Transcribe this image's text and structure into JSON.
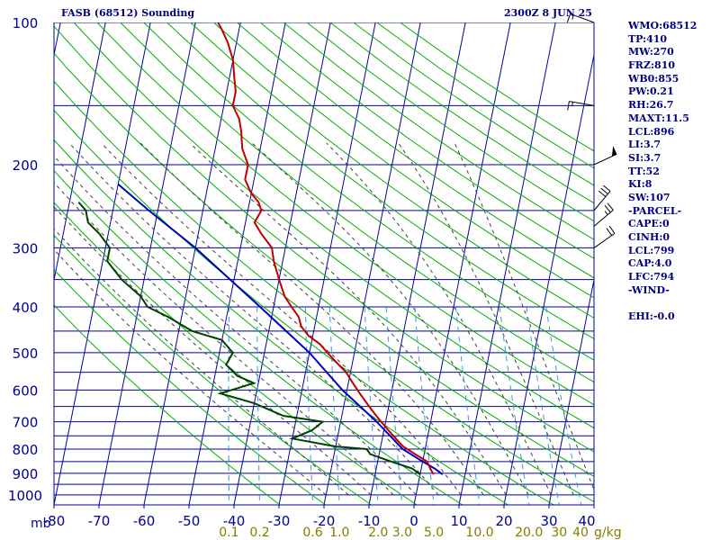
{
  "header": {
    "title": "FASB (68512) Sounding",
    "datetime": "2300Z  8 JUN 25"
  },
  "indices": [
    "WMO:68512",
    "TP:410",
    "MW:270",
    "FRZ:810",
    "WB0:855",
    "PW:0.21",
    "RH:26.7",
    "MAXT:11.5",
    "LCL:896",
    "LI:3.7",
    "SI:3.7",
    "TT:52",
    "KI:8",
    "SW:107",
    "-PARCEL-",
    "CAPE:0",
    "CINH:0",
    "LCL:799",
    "CAP:4.0",
    "LFC:794",
    "-WIND-",
    "",
    "EHI:-0.0"
  ],
  "colors": {
    "axis": "#000099",
    "dry_adiabat": "#00b000",
    "moist_adiabat": "#404040",
    "mixing_ratio": "#3a9ad8",
    "temperature": "#c00000",
    "dewpoint": "#004000",
    "parcel": "#0000c0",
    "temp_ticks": "#000099",
    "mixing_ticks": "#8a7a00"
  },
  "chart_data": {
    "type": "skew-t",
    "pressure_ticks": [
      "100",
      "200",
      "300",
      "400",
      "500",
      "600",
      "700",
      "800",
      "900",
      "1000"
    ],
    "pressure_unit": "mb",
    "pressure_range": [
      100,
      1050
    ],
    "isobars_mb": [
      100,
      150,
      200,
      250,
      300,
      350,
      400,
      450,
      500,
      550,
      600,
      650,
      700,
      750,
      800,
      850,
      900,
      950,
      1000
    ],
    "temperature_ticks": [
      "-80",
      "-70",
      "-60",
      "-50",
      "-40",
      "-30",
      "-20",
      "-10",
      "0",
      "10",
      "20",
      "30",
      "40"
    ],
    "temperature_range_c": [
      -80,
      40
    ],
    "mixing_ratio_labels": [
      "0.1",
      "0.2",
      "0.6",
      "1.0",
      "2.0",
      "3.0",
      "5.0",
      "10.0",
      "20.0",
      "30",
      "40"
    ],
    "mixing_ratio_unit": "g/kg",
    "temperature_profile": [
      {
        "p": 905,
        "t": 3
      },
      {
        "p": 880,
        "t": 2
      },
      {
        "p": 850,
        "t": 1
      },
      {
        "p": 820,
        "t": -2
      },
      {
        "p": 790,
        "t": -5
      },
      {
        "p": 760,
        "t": -7
      },
      {
        "p": 730,
        "t": -9
      },
      {
        "p": 700,
        "t": -11
      },
      {
        "p": 670,
        "t": -13
      },
      {
        "p": 640,
        "t": -15
      },
      {
        "p": 610,
        "t": -17
      },
      {
        "p": 580,
        "t": -19
      },
      {
        "p": 550,
        "t": -21
      },
      {
        "p": 520,
        "t": -24
      },
      {
        "p": 500,
        "t": -26
      },
      {
        "p": 480,
        "t": -28
      },
      {
        "p": 460,
        "t": -31
      },
      {
        "p": 440,
        "t": -33
      },
      {
        "p": 420,
        "t": -34
      },
      {
        "p": 400,
        "t": -36
      },
      {
        "p": 380,
        "t": -38
      },
      {
        "p": 350,
        "t": -40
      },
      {
        "p": 320,
        "t": -42
      },
      {
        "p": 300,
        "t": -43
      },
      {
        "p": 280,
        "t": -46
      },
      {
        "p": 265,
        "t": -48
      },
      {
        "p": 250,
        "t": -47
      },
      {
        "p": 240,
        "t": -48
      },
      {
        "p": 230,
        "t": -50
      },
      {
        "p": 215,
        "t": -52
      },
      {
        "p": 200,
        "t": -52
      },
      {
        "p": 185,
        "t": -54
      },
      {
        "p": 170,
        "t": -55
      },
      {
        "p": 160,
        "t": -56
      },
      {
        "p": 150,
        "t": -58
      },
      {
        "p": 140,
        "t": -58
      },
      {
        "p": 130,
        "t": -59
      },
      {
        "p": 120,
        "t": -60
      },
      {
        "p": 110,
        "t": -62
      },
      {
        "p": 103,
        "t": -64
      },
      {
        "p": 100,
        "t": -65
      }
    ],
    "dewpoint_profile": [
      {
        "p": 905,
        "t": 0
      },
      {
        "p": 880,
        "t": -2
      },
      {
        "p": 850,
        "t": -7
      },
      {
        "p": 820,
        "t": -12
      },
      {
        "p": 800,
        "t": -13
      },
      {
        "p": 790,
        "t": -20
      },
      {
        "p": 760,
        "t": -30
      },
      {
        "p": 730,
        "t": -26
      },
      {
        "p": 700,
        "t": -24
      },
      {
        "p": 680,
        "t": -33
      },
      {
        "p": 640,
        "t": -40
      },
      {
        "p": 610,
        "t": -48
      },
      {
        "p": 580,
        "t": -41
      },
      {
        "p": 560,
        "t": -45
      },
      {
        "p": 530,
        "t": -48
      },
      {
        "p": 500,
        "t": -47
      },
      {
        "p": 470,
        "t": -50
      },
      {
        "p": 450,
        "t": -57
      },
      {
        "p": 420,
        "t": -63
      },
      {
        "p": 400,
        "t": -68
      },
      {
        "p": 380,
        "t": -70
      },
      {
        "p": 350,
        "t": -75
      },
      {
        "p": 320,
        "t": -79
      },
      {
        "p": 300,
        "t": -79
      },
      {
        "p": 280,
        "t": -82
      },
      {
        "p": 265,
        "t": -85
      },
      {
        "p": 250,
        "t": -86
      },
      {
        "p": 240,
        "t": -88
      }
    ],
    "parcel_profile": [
      {
        "p": 905,
        "t": 5
      },
      {
        "p": 880,
        "t": 3
      },
      {
        "p": 850,
        "t": 0
      },
      {
        "p": 800,
        "t": -5
      },
      {
        "p": 700,
        "t": -12
      },
      {
        "p": 600,
        "t": -21
      },
      {
        "p": 500,
        "t": -30
      },
      {
        "p": 400,
        "t": -43
      },
      {
        "p": 300,
        "t": -60
      },
      {
        "p": 250,
        "t": -72
      },
      {
        "p": 220,
        "t": -80
      }
    ],
    "wind_barbs": [
      {
        "p": 100,
        "dir": 110,
        "kt": 15
      },
      {
        "p": 150,
        "dir": 100,
        "kt": 15
      },
      {
        "p": 200,
        "dir": 245,
        "kt": 50
      },
      {
        "p": 250,
        "dir": 220,
        "kt": 30
      },
      {
        "p": 270,
        "dir": 230,
        "kt": 25
      },
      {
        "p": 300,
        "dir": 235,
        "kt": 20
      }
    ]
  }
}
